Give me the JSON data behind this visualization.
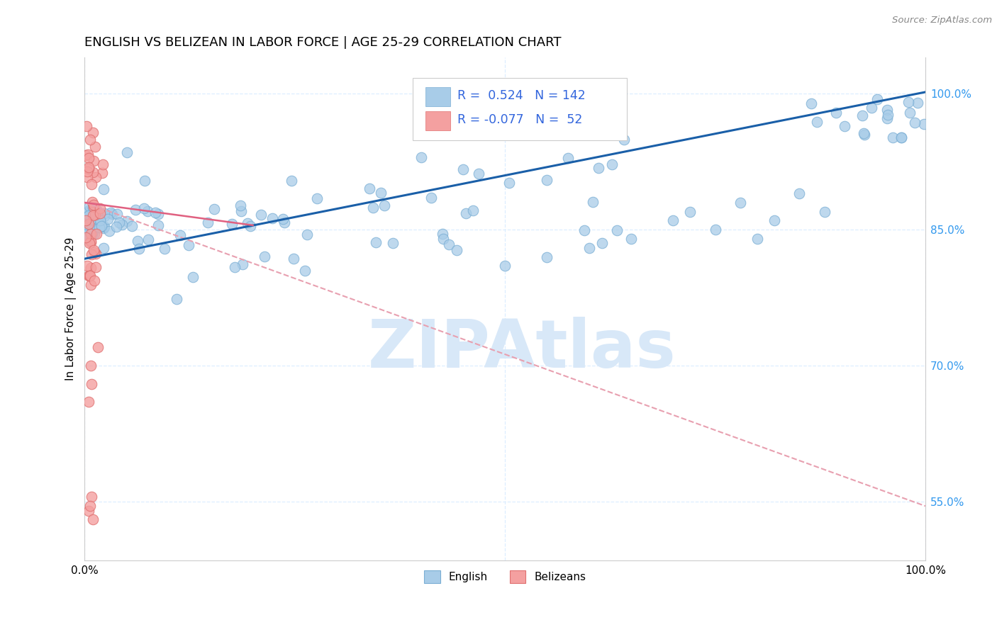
{
  "title": "ENGLISH VS BELIZEAN IN LABOR FORCE | AGE 25-29 CORRELATION CHART",
  "source_text": "Source: ZipAtlas.com",
  "ylabel": "In Labor Force | Age 25-29",
  "xlim": [
    0.0,
    1.0
  ],
  "ylim": [
    0.485,
    1.04
  ],
  "yticks": [
    0.55,
    0.7,
    0.85,
    1.0
  ],
  "ytick_labels": [
    "55.0%",
    "70.0%",
    "85.0%",
    "100.0%"
  ],
  "xtick_labels": [
    "0.0%",
    "100.0%"
  ],
  "legend_r_english": "0.524",
  "legend_n_english": "142",
  "legend_r_belizean": "-0.077",
  "legend_n_belizean": "52",
  "english_color": "#A8CCE8",
  "english_edge": "#7AAED4",
  "belizean_color": "#F4A0A0",
  "belizean_edge": "#E07070",
  "trend_english_color": "#1A5FA8",
  "trend_belizean_solid_color": "#E06080",
  "trend_belizean_dash_color": "#E8A0B0",
  "background_color": "#FFFFFF",
  "grid_color": "#DDEEFF",
  "title_fontsize": 13,
  "axis_label_color": "#3399EE",
  "watermark_text": "ZIPAtlas",
  "watermark_color": "#D8E8F8",
  "legend_text_color": "#3366DD"
}
